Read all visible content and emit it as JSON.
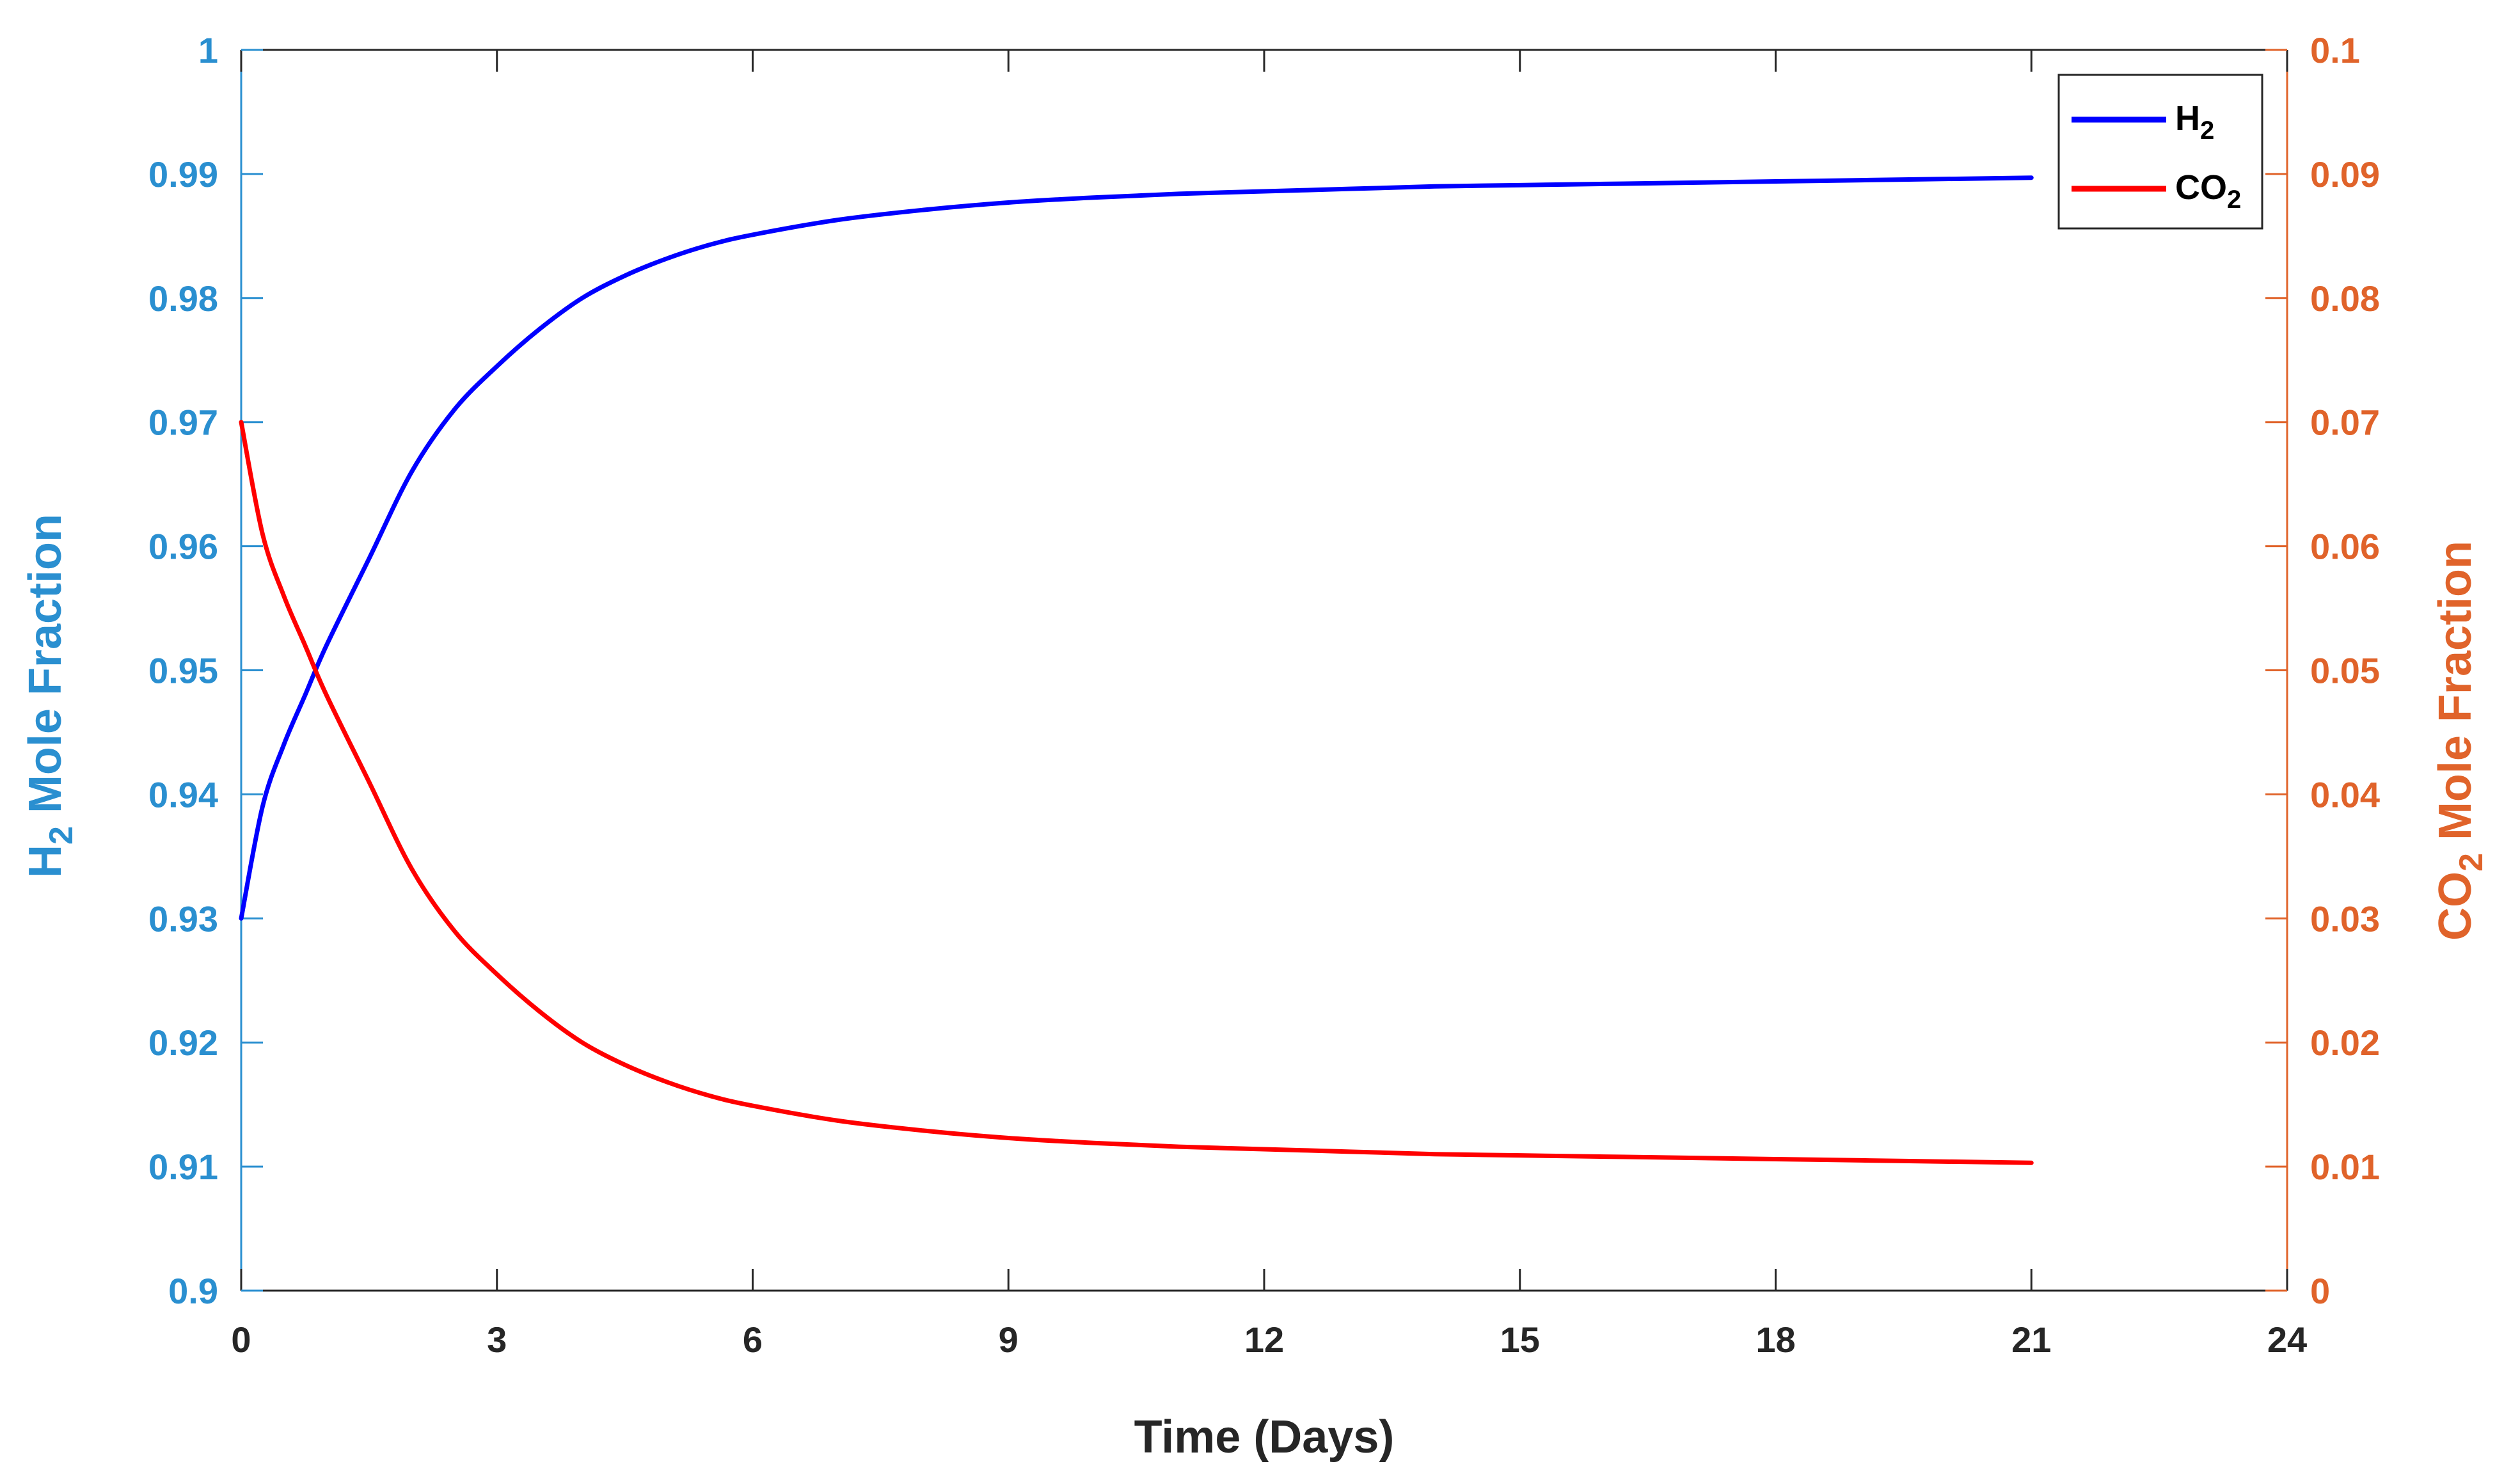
{
  "chart_data": {
    "type": "line",
    "title": "",
    "xlabel": "Time (Days)",
    "ylabel_left": {
      "main": "H",
      "sub": "2",
      "rest": " Mole Fraction"
    },
    "ylabel_right": {
      "main": "CO",
      "sub": "2",
      "rest": " Mole Fraction"
    },
    "xlim": [
      0,
      24
    ],
    "ylim_left": [
      0.9,
      1.0
    ],
    "ylim_right": [
      0,
      0.1
    ],
    "x_ticks": [
      "0",
      "3",
      "6",
      "9",
      "12",
      "15",
      "18",
      "21",
      "24"
    ],
    "y_left_ticks": [
      "0.9",
      "0.91",
      "0.92",
      "0.93",
      "0.94",
      "0.95",
      "0.96",
      "0.97",
      "0.98",
      "0.99",
      "1"
    ],
    "y_right_ticks": [
      "0",
      "0.01",
      "0.02",
      "0.03",
      "0.04",
      "0.05",
      "0.06",
      "0.07",
      "0.08",
      "0.09",
      "0.1"
    ],
    "grid": false,
    "legend_position": "top-right",
    "series": [
      {
        "name": {
          "main": "H",
          "sub": "2"
        },
        "axis": "left",
        "color": "#0000ff",
        "x": [
          0,
          0.25,
          0.5,
          0.75,
          1,
          1.5,
          2,
          2.5,
          3,
          3.5,
          4,
          4.5,
          5,
          5.5,
          6,
          7,
          8,
          9,
          10,
          11,
          12,
          13,
          14,
          15,
          16,
          17,
          18,
          19,
          20,
          21
        ],
        "values": [
          0.93,
          0.939,
          0.944,
          0.948,
          0.952,
          0.959,
          0.966,
          0.971,
          0.9745,
          0.9775,
          0.98,
          0.9818,
          0.9832,
          0.9843,
          0.9851,
          0.9863,
          0.9871,
          0.9877,
          0.9881,
          0.9884,
          0.9886,
          0.9888,
          0.989,
          0.9891,
          0.9892,
          0.9893,
          0.9894,
          0.9895,
          0.9896,
          0.9897
        ]
      },
      {
        "name": {
          "main": "CO",
          "sub": "2"
        },
        "axis": "right",
        "color": "#ff0000",
        "x": [
          0,
          0.25,
          0.5,
          0.75,
          1,
          1.5,
          2,
          2.5,
          3,
          3.5,
          4,
          4.5,
          5,
          5.5,
          6,
          7,
          8,
          9,
          10,
          11,
          12,
          13,
          14,
          15,
          16,
          17,
          18,
          19,
          20,
          21
        ],
        "values": [
          0.07,
          0.061,
          0.056,
          0.052,
          0.048,
          0.041,
          0.034,
          0.029,
          0.0255,
          0.0225,
          0.02,
          0.0182,
          0.0168,
          0.0157,
          0.0149,
          0.0137,
          0.0129,
          0.0123,
          0.0119,
          0.0116,
          0.0114,
          0.0112,
          0.011,
          0.0109,
          0.0108,
          0.0107,
          0.0106,
          0.0105,
          0.0104,
          0.0103
        ]
      }
    ],
    "colors": {
      "left_axis": "#2a8fd0",
      "right_axis": "#e0632a",
      "frame": "#262626",
      "text": "#262626"
    }
  }
}
